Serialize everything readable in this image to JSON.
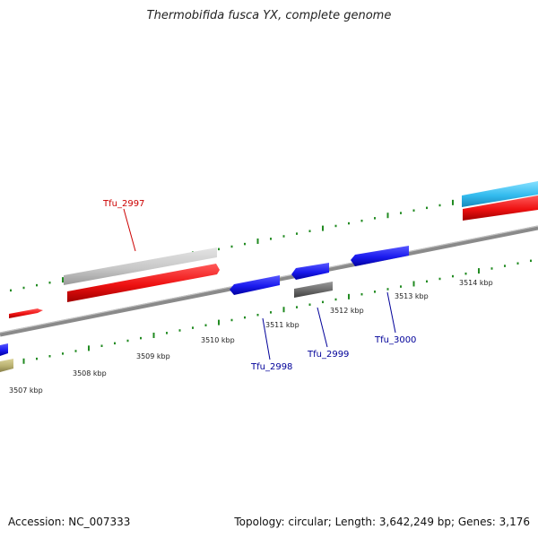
{
  "title": "Thermobifida fusca YX, complete genome",
  "footer": {
    "accession": "Accession: NC_007333",
    "stats": "Topology: circular; Length: 3,642,249 bp; Genes: 3,176"
  },
  "scale": {
    "unit": "kbp",
    "ticks": [
      {
        "label": "3507 kbp"
      },
      {
        "label": "3508 kbp"
      },
      {
        "label": "3509 kbp"
      },
      {
        "label": "3510 kbp"
      },
      {
        "label": "3511 kbp"
      },
      {
        "label": "3512 kbp"
      },
      {
        "label": "3513 kbp"
      },
      {
        "label": "3514 kbp"
      }
    ]
  },
  "gene_labels": [
    {
      "name": "Tfu_2997",
      "color": "#cc0000"
    },
    {
      "name": "Tfu_2998",
      "color": "#000099"
    },
    {
      "name": "Tfu_2999",
      "color": "#000099"
    },
    {
      "name": "Tfu_3000",
      "color": "#000099"
    }
  ],
  "colors": {
    "backbone": "#808080",
    "scale_dots": "#228b22",
    "forward_gene": "#ee1111",
    "reverse_gene": "#1a1aee",
    "highlight_gene": "#c8c8c8",
    "dark_gene": "#6a6a6a",
    "cyan_gene": "#33bbee",
    "khaki_gene": "#b8b070"
  }
}
